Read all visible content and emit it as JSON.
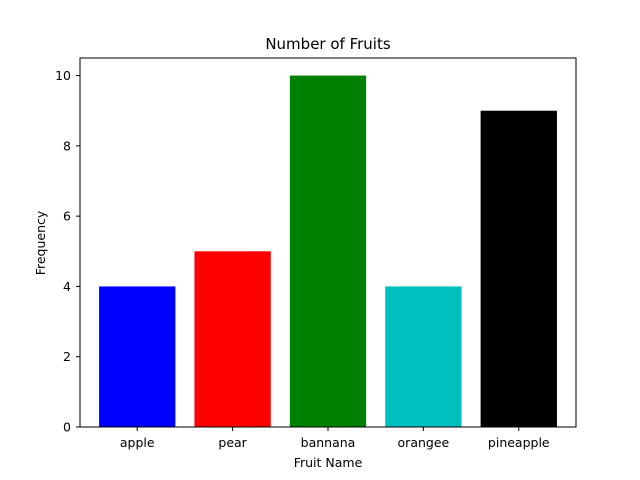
{
  "chart_data": {
    "type": "bar",
    "title": "Number of Fruits",
    "xlabel": "Fruit Name",
    "ylabel": "Frequency",
    "categories": [
      "apple",
      "pear",
      "bannana",
      "orangee",
      "pineapple"
    ],
    "values": [
      4,
      5,
      10,
      4,
      9
    ],
    "colors": [
      "#0000ff",
      "#ff0000",
      "#008000",
      "#00bfbf",
      "#000000"
    ],
    "ylim": [
      0,
      10.5
    ],
    "yticks": [
      0,
      2,
      4,
      6,
      8,
      10
    ],
    "grid": false,
    "legend": "none"
  }
}
